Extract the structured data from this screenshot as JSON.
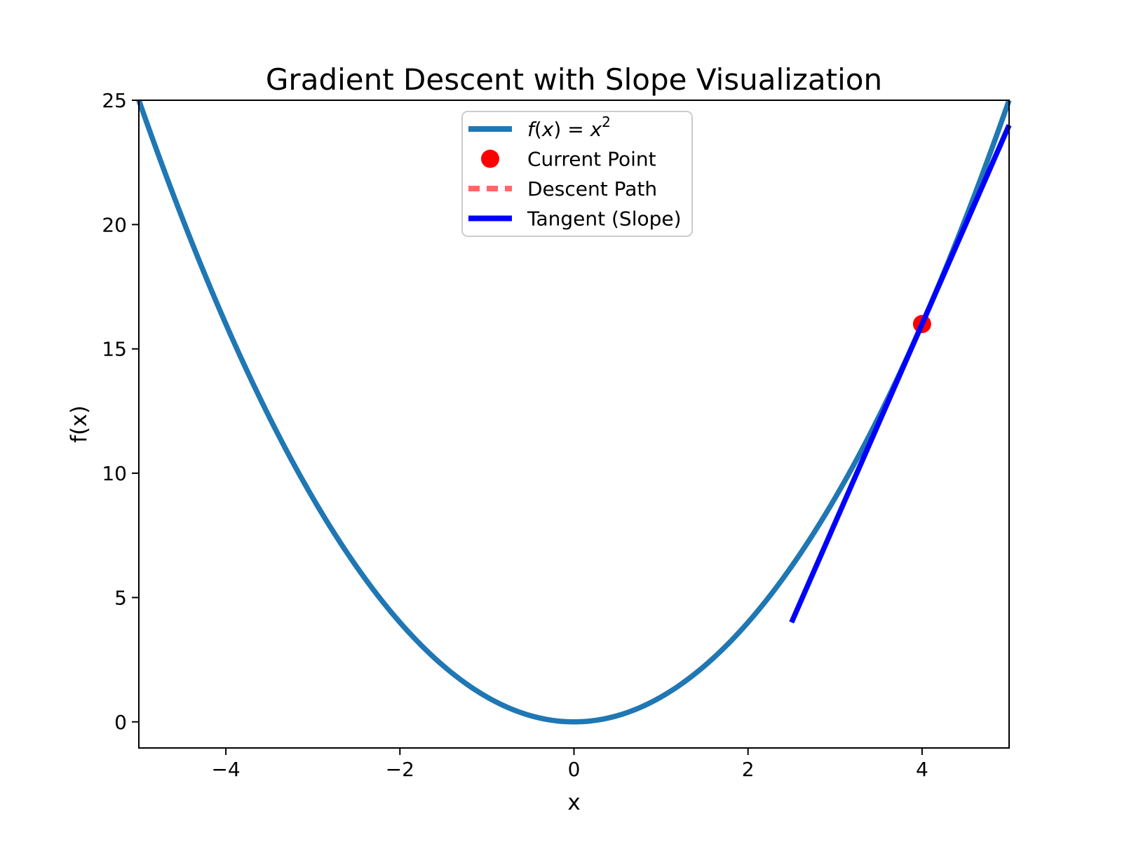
{
  "figure": {
    "background": "#ffffff"
  },
  "chart_data": {
    "type": "line",
    "title": "Gradient Descent with Slope Visualization",
    "xlabel": "x",
    "ylabel": "f(x)",
    "xlim": [
      -5,
      5
    ],
    "ylim": [
      -1.05,
      25
    ],
    "xticks": {
      "values": [
        -4,
        -2,
        0,
        2,
        4
      ],
      "labels": [
        "−4",
        "−2",
        "0",
        "2",
        "4"
      ]
    },
    "yticks": {
      "values": [
        0,
        5,
        10,
        15,
        20,
        25
      ],
      "labels": [
        "0",
        "5",
        "10",
        "15",
        "20",
        "25"
      ]
    },
    "grid": false,
    "axes_color": "#000000",
    "series": [
      {
        "id": "function-curve",
        "name": "f(x) = x²",
        "type": "function",
        "fn": "x^2",
        "x_range": [
          -5,
          5
        ],
        "color": "#1f77b4",
        "linewidth": 7.5
      },
      {
        "id": "current-point",
        "name": "Current Point",
        "type": "scatter",
        "points": [
          [
            4,
            16
          ]
        ],
        "color": "#ff0000",
        "radius": 13
      },
      {
        "id": "descent-path",
        "name": "Descent Path",
        "type": "dashed-line",
        "points": [
          [
            4,
            16
          ]
        ],
        "color": "#ff6666",
        "linewidth": 7.5
      },
      {
        "id": "tangent-line",
        "name": "Tangent (Slope)",
        "type": "line-segment",
        "slope": 8,
        "through": [
          4,
          16
        ],
        "x_range": [
          2.5,
          5.5
        ],
        "color": "#0000ff",
        "linewidth": 7.5
      }
    ],
    "legend": {
      "position": "upper center",
      "border_color": "#cccccc",
      "entries": [
        {
          "label": "f(x) = x²",
          "math": true,
          "marker": "line",
          "color": "#1f77b4"
        },
        {
          "label": "Current Point",
          "math": false,
          "marker": "dot",
          "color": "#ff0000"
        },
        {
          "label": "Descent Path",
          "math": false,
          "marker": "dashed-line",
          "color": "#ff6666"
        },
        {
          "label": "Tangent (Slope)",
          "math": false,
          "marker": "line",
          "color": "#0000ff"
        }
      ]
    },
    "annotation_point": {
      "x": 4,
      "y": 16,
      "slope": 8
    }
  }
}
